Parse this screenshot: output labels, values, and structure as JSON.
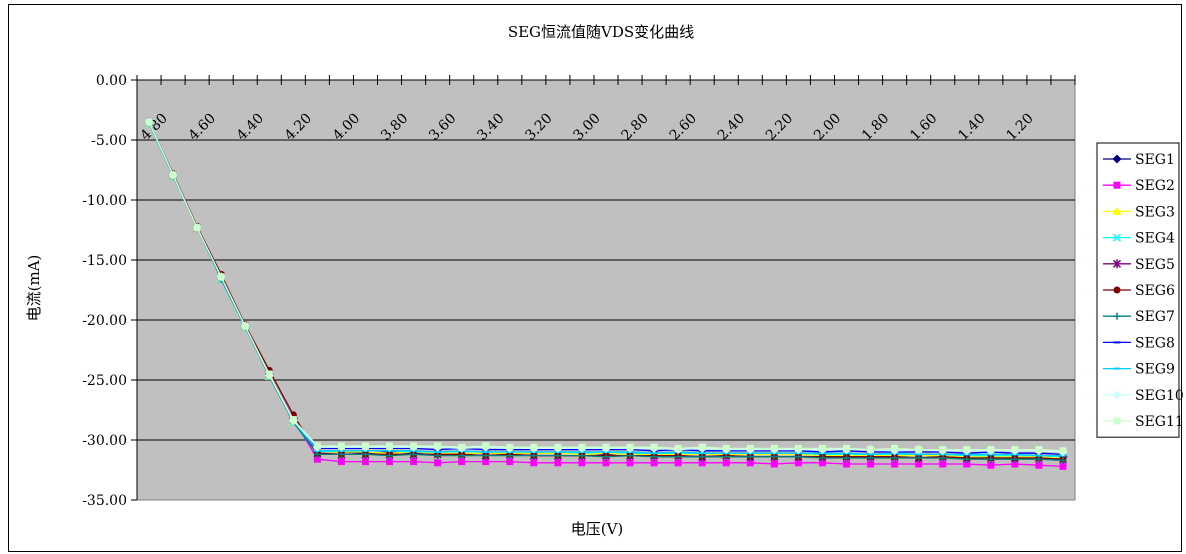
{
  "chart_data": {
    "type": "line",
    "title": "SEG恒流值随VDS变化曲线",
    "xlabel": "电压(V)",
    "ylabel": "电流(mA)",
    "ylim": [
      -35,
      0
    ],
    "y_ticks": [
      "0.00",
      "-5.00",
      "-10.00",
      "-15.00",
      "-20.00",
      "-25.00",
      "-30.00",
      "-35.00"
    ],
    "x_tick_labels": [
      "4.80",
      "4.60",
      "4.40",
      "4.20",
      "4.00",
      "3.80",
      "3.60",
      "3.40",
      "3.20",
      "3.00",
      "2.80",
      "2.60",
      "2.40",
      "2.20",
      "2.00",
      "1.80",
      "1.60",
      "1.40",
      "1.20"
    ],
    "x": [
      4.8,
      4.7,
      4.6,
      4.5,
      4.4,
      4.3,
      4.2,
      4.1,
      4.0,
      3.9,
      3.8,
      3.7,
      3.6,
      3.5,
      3.4,
      3.3,
      3.2,
      3.1,
      3.0,
      2.9,
      2.8,
      2.7,
      2.6,
      2.5,
      2.4,
      2.3,
      2.2,
      2.1,
      2.0,
      1.9,
      1.8,
      1.7,
      1.6,
      1.5,
      1.4,
      1.3,
      1.2,
      1.1,
      1.0
    ],
    "grid": "horizontal",
    "plot_background": "#c0c0c0",
    "legend_position": "right",
    "series": [
      {
        "name": "SEG1",
        "color": "#000080",
        "marker": "diamond",
        "values": [
          -3.5,
          -7.9,
          -12.3,
          -16.4,
          -20.5,
          -24.5,
          -28.2,
          -31.0,
          -31.0,
          -31.1,
          -31.0,
          -31.1,
          -31.0,
          -31.1,
          -31.1,
          -31.1,
          -31.1,
          -31.1,
          -31.1,
          -31.2,
          -31.1,
          -31.2,
          -31.1,
          -31.2,
          -31.2,
          -31.2,
          -31.2,
          -31.2,
          -31.2,
          -31.3,
          -31.2,
          -31.3,
          -31.3,
          -31.3,
          -31.3,
          -31.3,
          -31.3,
          -31.4,
          -31.4
        ]
      },
      {
        "name": "SEG2",
        "color": "#ff00ff",
        "marker": "square",
        "values": [
          -3.5,
          -7.9,
          -12.3,
          -16.3,
          -20.5,
          -24.5,
          -28.2,
          -31.6,
          -31.8,
          -31.8,
          -31.8,
          -31.8,
          -31.9,
          -31.8,
          -31.8,
          -31.8,
          -31.9,
          -31.9,
          -31.9,
          -31.9,
          -31.9,
          -31.9,
          -31.9,
          -31.9,
          -31.9,
          -31.9,
          -32.0,
          -31.9,
          -31.9,
          -32.0,
          -32.0,
          -32.0,
          -32.0,
          -32.0,
          -32.0,
          -32.1,
          -32.0,
          -32.1,
          -32.2
        ]
      },
      {
        "name": "SEG3",
        "color": "#ffff00",
        "marker": "triangle",
        "values": [
          -3.6,
          -8.0,
          -12.3,
          -16.5,
          -20.6,
          -24.7,
          -28.5,
          -31.0,
          -31.0,
          -31.0,
          -31.1,
          -31.0,
          -31.1,
          -31.1,
          -31.1,
          -31.1,
          -31.1,
          -31.1,
          -31.2,
          -31.1,
          -31.2,
          -31.2,
          -31.2,
          -31.2,
          -31.2,
          -31.2,
          -31.2,
          -31.2,
          -31.3,
          -31.3,
          -31.3,
          -31.3,
          -31.3,
          -31.3,
          -31.4,
          -31.4,
          -31.4,
          -31.4,
          -31.5
        ]
      },
      {
        "name": "SEG4",
        "color": "#00ffff",
        "marker": "x",
        "values": [
          -3.6,
          -8.0,
          -12.3,
          -16.6,
          -20.6,
          -24.7,
          -28.5,
          -31.0,
          -30.9,
          -30.9,
          -30.9,
          -31.0,
          -31.0,
          -31.0,
          -31.0,
          -31.0,
          -31.0,
          -31.0,
          -31.1,
          -31.0,
          -31.1,
          -31.1,
          -31.1,
          -31.1,
          -31.1,
          -31.1,
          -31.1,
          -31.1,
          -31.2,
          -31.2,
          -31.2,
          -31.2,
          -31.2,
          -31.2,
          -31.3,
          -31.3,
          -31.3,
          -31.3,
          -31.4
        ]
      },
      {
        "name": "SEG5",
        "color": "#800080",
        "marker": "star",
        "values": [
          -3.5,
          -7.9,
          -12.3,
          -16.4,
          -20.5,
          -24.5,
          -28.3,
          -31.1,
          -31.2,
          -31.2,
          -31.2,
          -31.2,
          -31.2,
          -31.2,
          -31.3,
          -31.2,
          -31.3,
          -31.3,
          -31.3,
          -31.3,
          -31.3,
          -31.3,
          -31.3,
          -31.4,
          -31.3,
          -31.4,
          -31.4,
          -31.4,
          -31.4,
          -31.4,
          -31.4,
          -31.4,
          -31.5,
          -31.4,
          -31.5,
          -31.5,
          -31.5,
          -31.5,
          -31.6
        ]
      },
      {
        "name": "SEG6",
        "color": "#800000",
        "marker": "circle",
        "values": [
          -3.5,
          -7.8,
          -12.2,
          -16.2,
          -20.4,
          -24.2,
          -27.9,
          -31.1,
          -31.2,
          -31.2,
          -31.2,
          -31.2,
          -31.2,
          -31.2,
          -31.3,
          -31.2,
          -31.3,
          -31.3,
          -31.3,
          -31.3,
          -31.3,
          -31.3,
          -31.3,
          -31.4,
          -31.3,
          -31.4,
          -31.4,
          -31.4,
          -31.4,
          -31.4,
          -31.4,
          -31.4,
          -31.5,
          -31.4,
          -31.5,
          -31.5,
          -31.5,
          -31.5,
          -31.6
        ]
      },
      {
        "name": "SEG7",
        "color": "#008080",
        "marker": "plus",
        "values": [
          -3.6,
          -8.0,
          -12.3,
          -16.6,
          -20.6,
          -24.7,
          -28.5,
          -31.2,
          -31.2,
          -31.2,
          -31.3,
          -31.2,
          -31.3,
          -31.3,
          -31.3,
          -31.3,
          -31.3,
          -31.3,
          -31.3,
          -31.4,
          -31.3,
          -31.4,
          -31.4,
          -31.4,
          -31.4,
          -31.4,
          -31.4,
          -31.4,
          -31.5,
          -31.5,
          -31.5,
          -31.5,
          -31.5,
          -31.5,
          -31.6,
          -31.6,
          -31.6,
          -31.6,
          -31.7
        ]
      },
      {
        "name": "SEG8",
        "color": "#0000ff",
        "marker": "dash",
        "values": [
          -3.5,
          -7.9,
          -12.3,
          -16.4,
          -20.5,
          -24.5,
          -28.3,
          -30.7,
          -30.7,
          -30.7,
          -30.7,
          -30.7,
          -30.8,
          -30.7,
          -30.8,
          -30.8,
          -30.8,
          -30.8,
          -30.8,
          -30.8,
          -30.8,
          -30.9,
          -30.8,
          -30.9,
          -30.9,
          -30.9,
          -30.9,
          -30.9,
          -31.0,
          -30.9,
          -31.0,
          -31.0,
          -31.0,
          -31.0,
          -31.1,
          -31.0,
          -31.1,
          -31.1,
          -31.2
        ]
      },
      {
        "name": "SEG9",
        "color": "#00ccff",
        "marker": "dash",
        "values": [
          -3.6,
          -8.0,
          -12.3,
          -16.5,
          -20.6,
          -24.6,
          -28.4,
          -30.9,
          -30.9,
          -30.9,
          -30.9,
          -30.9,
          -31.0,
          -30.9,
          -31.0,
          -31.0,
          -31.0,
          -31.0,
          -31.0,
          -31.0,
          -31.0,
          -31.1,
          -31.0,
          -31.1,
          -31.1,
          -31.1,
          -31.1,
          -31.1,
          -31.1,
          -31.1,
          -31.2,
          -31.1,
          -31.2,
          -31.2,
          -31.2,
          -31.2,
          -31.2,
          -31.3,
          -31.3
        ]
      },
      {
        "name": "SEG10",
        "color": "#ccffff",
        "marker": "diamond",
        "values": [
          -3.5,
          -7.9,
          -12.3,
          -16.4,
          -20.5,
          -24.6,
          -28.4,
          -30.6,
          -30.6,
          -30.6,
          -30.6,
          -30.6,
          -30.6,
          -30.7,
          -30.6,
          -30.7,
          -30.7,
          -30.7,
          -30.7,
          -30.7,
          -30.7,
          -30.7,
          -30.8,
          -30.7,
          -30.8,
          -30.8,
          -30.8,
          -30.8,
          -30.8,
          -30.8,
          -30.8,
          -30.9,
          -30.8,
          -30.9,
          -30.9,
          -30.9,
          -30.9,
          -30.9,
          -31.0
        ]
      },
      {
        "name": "SEG11",
        "color": "#ccffcc",
        "marker": "square",
        "values": [
          -3.5,
          -7.9,
          -12.3,
          -16.4,
          -20.5,
          -24.5,
          -28.3,
          -30.5,
          -30.5,
          -30.5,
          -30.5,
          -30.5,
          -30.5,
          -30.6,
          -30.5,
          -30.6,
          -30.6,
          -30.6,
          -30.6,
          -30.6,
          -30.6,
          -30.6,
          -30.7,
          -30.6,
          -30.7,
          -30.7,
          -30.7,
          -30.7,
          -30.7,
          -30.7,
          -30.8,
          -30.7,
          -30.8,
          -30.8,
          -30.8,
          -30.8,
          -30.8,
          -30.8,
          -30.9
        ]
      }
    ]
  }
}
